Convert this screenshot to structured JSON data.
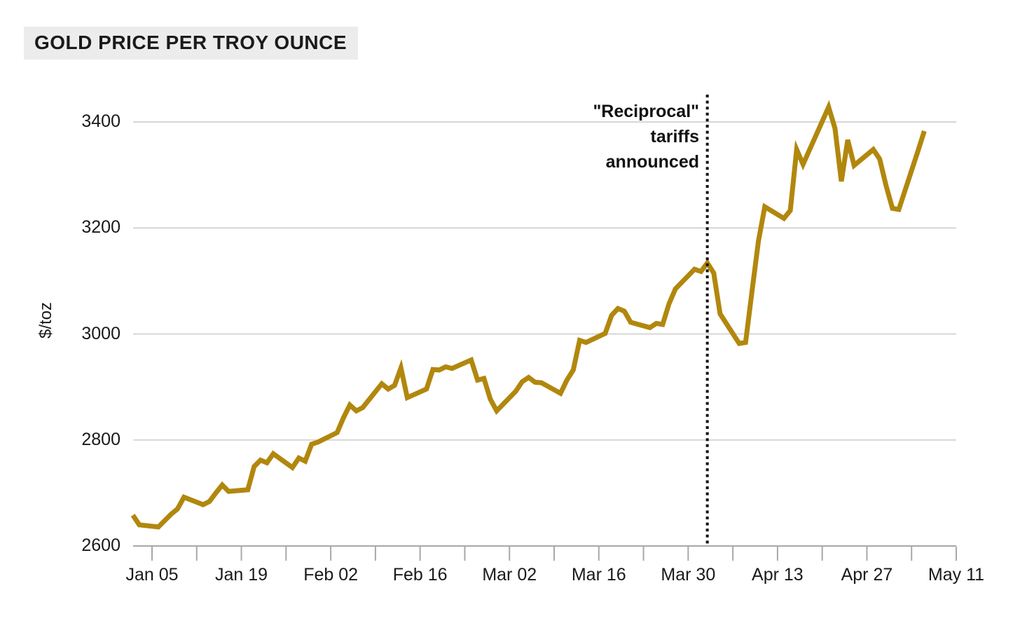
{
  "header": {
    "title": "GOLD PRICE PER TROY OUNCE"
  },
  "chart": {
    "y_unit": "$/toz",
    "annotation": {
      "text": "\"Reciprocal\"\ntariffs\nannounced"
    }
  },
  "colors": {
    "line": "#B1870D",
    "grid": "#D6D6D6",
    "axis": "#A8A8A8",
    "text": "#1A1A1A",
    "title_bg": "#ECECEC",
    "annotation_line": "#111111"
  },
  "chart_data": {
    "type": "line",
    "title": "GOLD PRICE PER TROY OUNCE",
    "xlabel": "",
    "ylabel": "$/toz",
    "yticks": [
      2600,
      2800,
      3000,
      3200,
      3400
    ],
    "ylim": [
      2600,
      3450
    ],
    "x_range": [
      "Jan 05",
      "May 11"
    ],
    "x_tick_interval_days": 7,
    "xtick_labels": [
      "Jan 05",
      "Jan 19",
      "Feb 02",
      "Feb 16",
      "Mar 02",
      "Mar 16",
      "Mar 30",
      "Apr 13",
      "Apr 27",
      "May 11"
    ],
    "grid": "horizontal-only",
    "legend": "none",
    "annotation": {
      "label": "\"Reciprocal\" tariffs announced",
      "date": "Apr 02",
      "style": "vertical-dotted-line"
    },
    "series": [
      {
        "name": "Gold price ($/toz)",
        "points": [
          [
            "Jan 02",
            2658
          ],
          [
            "Jan 03",
            2640
          ],
          [
            "Jan 06",
            2636
          ],
          [
            "Jan 07",
            2648
          ],
          [
            "Jan 08",
            2660
          ],
          [
            "Jan 09",
            2670
          ],
          [
            "Jan 10",
            2692
          ],
          [
            "Jan 13",
            2678
          ],
          [
            "Jan 14",
            2684
          ],
          [
            "Jan 15",
            2700
          ],
          [
            "Jan 16",
            2715
          ],
          [
            "Jan 17",
            2703
          ],
          [
            "Jan 20",
            2706
          ],
          [
            "Jan 21",
            2750
          ],
          [
            "Jan 22",
            2762
          ],
          [
            "Jan 23",
            2757
          ],
          [
            "Jan 24",
            2774
          ],
          [
            "Jan 27",
            2748
          ],
          [
            "Jan 28",
            2766
          ],
          [
            "Jan 29",
            2760
          ],
          [
            "Jan 30",
            2792
          ],
          [
            "Jan 31",
            2796
          ],
          [
            "Feb 03",
            2814
          ],
          [
            "Feb 04",
            2842
          ],
          [
            "Feb 05",
            2866
          ],
          [
            "Feb 06",
            2855
          ],
          [
            "Feb 07",
            2861
          ],
          [
            "Feb 10",
            2906
          ],
          [
            "Feb 11",
            2896
          ],
          [
            "Feb 12",
            2903
          ],
          [
            "Feb 13",
            2936
          ],
          [
            "Feb 14",
            2880
          ],
          [
            "Feb 17",
            2896
          ],
          [
            "Feb 18",
            2933
          ],
          [
            "Feb 19",
            2932
          ],
          [
            "Feb 20",
            2938
          ],
          [
            "Feb 21",
            2935
          ],
          [
            "Feb 24",
            2951
          ],
          [
            "Feb 25",
            2913
          ],
          [
            "Feb 26",
            2916
          ],
          [
            "Feb 27",
            2877
          ],
          [
            "Feb 28",
            2855
          ],
          [
            "Mar 03",
            2892
          ],
          [
            "Mar 04",
            2910
          ],
          [
            "Mar 05",
            2918
          ],
          [
            "Mar 06",
            2909
          ],
          [
            "Mar 07",
            2908
          ],
          [
            "Mar 10",
            2888
          ],
          [
            "Mar 11",
            2913
          ],
          [
            "Mar 12",
            2932
          ],
          [
            "Mar 13",
            2988
          ],
          [
            "Mar 14",
            2984
          ],
          [
            "Mar 17",
            3001
          ],
          [
            "Mar 18",
            3035
          ],
          [
            "Mar 19",
            3048
          ],
          [
            "Mar 20",
            3043
          ],
          [
            "Mar 21",
            3022
          ],
          [
            "Mar 24",
            3012
          ],
          [
            "Mar 25",
            3020
          ],
          [
            "Mar 26",
            3018
          ],
          [
            "Mar 27",
            3057
          ],
          [
            "Mar 28",
            3085
          ],
          [
            "Mar 31",
            3122
          ],
          [
            "Apr 01",
            3118
          ],
          [
            "Apr 02",
            3134
          ],
          [
            "Apr 03",
            3115
          ],
          [
            "Apr 04",
            3038
          ],
          [
            "Apr 07",
            2982
          ],
          [
            "Apr 08",
            2984
          ],
          [
            "Apr 09",
            3080
          ],
          [
            "Apr 10",
            3175
          ],
          [
            "Apr 11",
            3240
          ],
          [
            "Apr 14",
            3218
          ],
          [
            "Apr 15",
            3233
          ],
          [
            "Apr 16",
            3348
          ],
          [
            "Apr 17",
            3320
          ],
          [
            "Apr 21",
            3428
          ],
          [
            "Apr 22",
            3388
          ],
          [
            "Apr 23",
            3288
          ],
          [
            "Apr 24",
            3366
          ],
          [
            "Apr 25",
            3318
          ],
          [
            "Apr 28",
            3348
          ],
          [
            "Apr 29",
            3330
          ],
          [
            "Apr 30",
            3280
          ],
          [
            "May 01",
            3237
          ],
          [
            "May 02",
            3235
          ],
          [
            "May 05",
            3345
          ],
          [
            "May 06",
            3383
          ]
        ]
      }
    ]
  }
}
